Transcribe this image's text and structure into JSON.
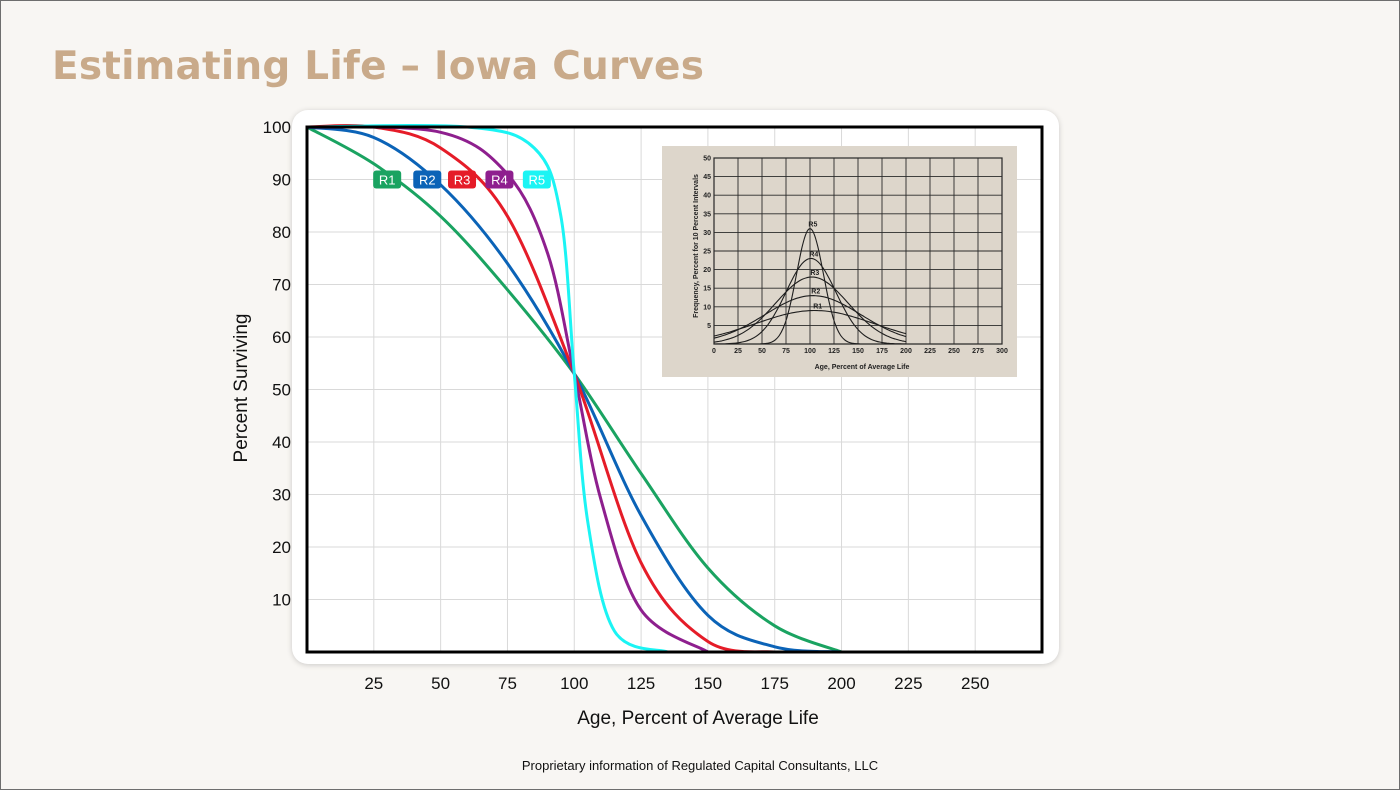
{
  "slide": {
    "title": "Estimating Life – Iowa Curves",
    "footer": "Proprietary information of Regulated Capital Consultants, LLC"
  },
  "chart_data": [
    {
      "type": "line",
      "xlabel": "Age, Percent of Average Life",
      "ylabel": "Percent Surviving",
      "xlim": [
        0,
        275
      ],
      "ylim": [
        0,
        100
      ],
      "x_ticks": [
        "25",
        "50",
        "75",
        "100",
        "125",
        "150",
        "175",
        "200",
        "225",
        "250"
      ],
      "y_ticks": [
        "10",
        "20",
        "30",
        "40",
        "50",
        "60",
        "70",
        "80",
        "90",
        "100"
      ],
      "grid": true,
      "series": [
        {
          "name": "R1",
          "color": "#1aa361",
          "label_at": [
            30,
            90
          ],
          "x": [
            0,
            25,
            50,
            75,
            100,
            125,
            150,
            175,
            200
          ],
          "y": [
            100,
            93,
            83,
            69,
            53,
            34,
            16,
            5,
            0
          ]
        },
        {
          "name": "R2",
          "color": "#0b63b7",
          "label_at": [
            45,
            90
          ],
          "x": [
            0,
            25,
            50,
            75,
            100,
            125,
            150,
            175,
            200
          ],
          "y": [
            100,
            98,
            89,
            74,
            53,
            26,
            7,
            1,
            0
          ]
        },
        {
          "name": "R3",
          "color": "#e51c28",
          "label_at": [
            58,
            90
          ],
          "x": [
            0,
            25,
            50,
            75,
            100,
            125,
            150,
            175
          ],
          "y": [
            100,
            100,
            96,
            83,
            53,
            17,
            2,
            0
          ]
        },
        {
          "name": "R4",
          "color": "#8e1f8e",
          "label_at": [
            72,
            90
          ],
          "x": [
            0,
            50,
            75,
            90,
            100,
            110,
            125,
            150
          ],
          "y": [
            100,
            99,
            91,
            76,
            53,
            29,
            8,
            0
          ]
        },
        {
          "name": "R5",
          "color": "#1bf4f4",
          "label_at": [
            86,
            90
          ],
          "x": [
            0,
            60,
            85,
            95,
            100,
            105,
            115,
            135
          ],
          "y": [
            100,
            100,
            96,
            83,
            53,
            25,
            4,
            0
          ]
        }
      ]
    },
    {
      "type": "line",
      "xlabel": "Age, Percent of Average Life",
      "ylabel": "Frequency, Percent for 10 Percent Intervals",
      "xlim": [
        0,
        300
      ],
      "ylim": [
        0,
        50
      ],
      "x_ticks": [
        "0",
        "25",
        "50",
        "75",
        "100",
        "125",
        "150",
        "175",
        "200",
        "225",
        "250",
        "275",
        "300"
      ],
      "y_ticks": [
        "5",
        "10",
        "15",
        "20",
        "25",
        "30",
        "35",
        "40",
        "45",
        "50"
      ],
      "grid": true,
      "series": [
        {
          "name": "R1",
          "peak_x": 105,
          "peak_y": 9
        },
        {
          "name": "R2",
          "peak_x": 103,
          "peak_y": 13
        },
        {
          "name": "R3",
          "peak_x": 102,
          "peak_y": 18
        },
        {
          "name": "R4",
          "peak_x": 101,
          "peak_y": 23
        },
        {
          "name": "R5",
          "peak_x": 100,
          "peak_y": 31
        }
      ]
    }
  ]
}
